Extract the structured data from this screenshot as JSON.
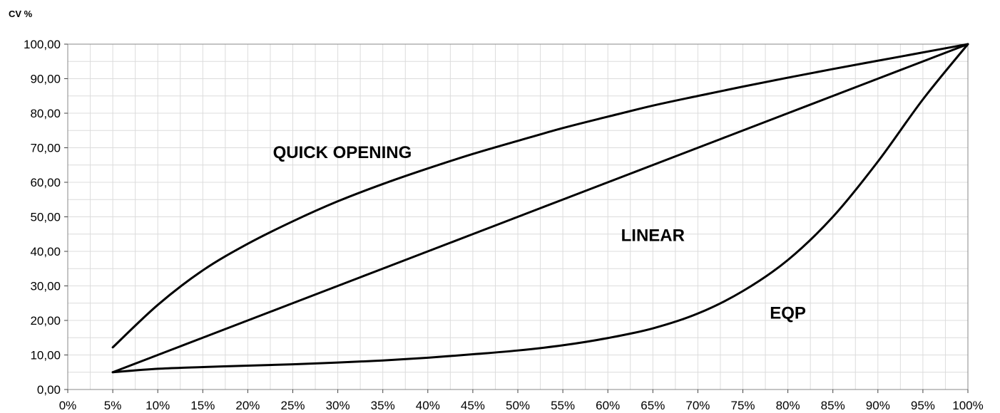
{
  "chart_data": {
    "type": "line",
    "ylabel": "CV %",
    "xlabel": "",
    "title": "",
    "x": [
      0.05,
      0.1,
      0.15,
      0.2,
      0.25,
      0.3,
      0.35,
      0.4,
      0.45,
      0.5,
      0.55,
      0.6,
      0.65,
      0.7,
      0.75,
      0.8,
      0.85,
      0.9,
      0.95,
      1.0
    ],
    "xlim": [
      0,
      1
    ],
    "ylim": [
      0,
      100
    ],
    "x_tick_labels": [
      "0%",
      "5%",
      "10%",
      "15%",
      "20%",
      "25%",
      "30%",
      "35%",
      "40%",
      "45%",
      "50%",
      "55%",
      "60%",
      "65%",
      "70%",
      "75%",
      "80%",
      "85%",
      "90%",
      "95%",
      "100%"
    ],
    "y_tick_labels": [
      "0,00",
      "10,00",
      "20,00",
      "30,00",
      "40,00",
      "50,00",
      "60,00",
      "70,00",
      "80,00",
      "90,00",
      "100,00"
    ],
    "grid": true,
    "series": [
      {
        "name": "QUICK OPENING",
        "values": [
          12.2,
          24.5,
          34.5,
          42.2,
          48.7,
          54.5,
          59.5,
          64.0,
          68.2,
          72.0,
          75.7,
          79.0,
          82.2,
          85.0,
          87.7,
          90.3,
          92.8,
          95.2,
          97.6,
          100.0
        ]
      },
      {
        "name": "LINEAR",
        "values": [
          5.0,
          10.0,
          15.0,
          20.0,
          25.0,
          30.0,
          35.0,
          40.0,
          45.0,
          50.0,
          55.0,
          60.0,
          65.0,
          70.0,
          75.0,
          80.0,
          85.0,
          90.0,
          95.0,
          100.0
        ]
      },
      {
        "name": "EQP",
        "values": [
          5.0,
          6.0,
          6.5,
          6.9,
          7.3,
          7.8,
          8.4,
          9.2,
          10.2,
          11.3,
          12.8,
          14.9,
          17.7,
          22.0,
          28.5,
          37.5,
          50.0,
          66.0,
          84.0,
          100.0
        ]
      }
    ],
    "annotations": [
      {
        "text": "QUICK OPENING",
        "x": 0.305,
        "y": 67
      },
      {
        "text": "LINEAR",
        "x": 0.65,
        "y": 43
      },
      {
        "text": "EQP",
        "x": 0.8,
        "y": 20.5
      }
    ]
  }
}
